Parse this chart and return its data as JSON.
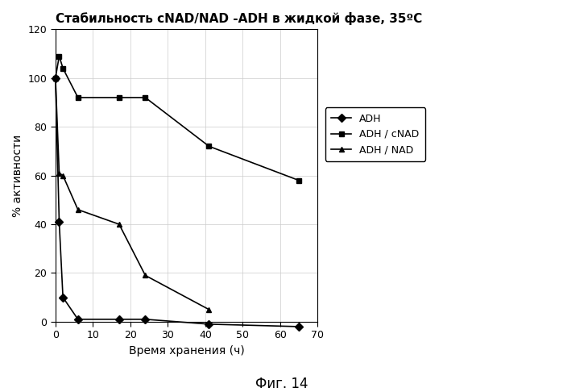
{
  "title": "Стабильность cNAD/NAD -ADH в жидкой фазе, 35ºC",
  "xlabel": "Время хранения (ч)",
  "ylabel": "% активности",
  "figcaption": "Фиг. 14",
  "xlim": [
    0,
    70
  ],
  "ylim": [
    0,
    120
  ],
  "xticks": [
    0,
    10,
    20,
    30,
    40,
    50,
    60,
    70
  ],
  "yticks": [
    0,
    20,
    40,
    60,
    80,
    100,
    120
  ],
  "series": [
    {
      "label": "ADH",
      "x": [
        0,
        1,
        2,
        6,
        17,
        24,
        41,
        65
      ],
      "y": [
        100,
        41,
        10,
        1,
        1,
        1,
        -1,
        -2
      ],
      "marker": "D",
      "markersize": 5,
      "linewidth": 1.2
    },
    {
      "label": "ADH / cNAD",
      "x": [
        0,
        1,
        2,
        6,
        17,
        24,
        41,
        65
      ],
      "y": [
        100,
        109,
        104,
        92,
        92,
        92,
        72,
        58
      ],
      "marker": "s",
      "markersize": 5,
      "linewidth": 1.2
    },
    {
      "label": "ADH / NAD",
      "x": [
        0,
        1,
        2,
        6,
        17,
        24,
        41,
        65
      ],
      "y": [
        100,
        61,
        60,
        46,
        40,
        19,
        5,
        null
      ],
      "marker": "^",
      "markersize": 5,
      "linewidth": 1.2
    }
  ],
  "background_color": "#ffffff",
  "grid_color": "#cccccc",
  "title_fontsize": 11,
  "axis_fontsize": 10,
  "tick_fontsize": 9,
  "legend_fontsize": 9,
  "caption_fontsize": 12
}
